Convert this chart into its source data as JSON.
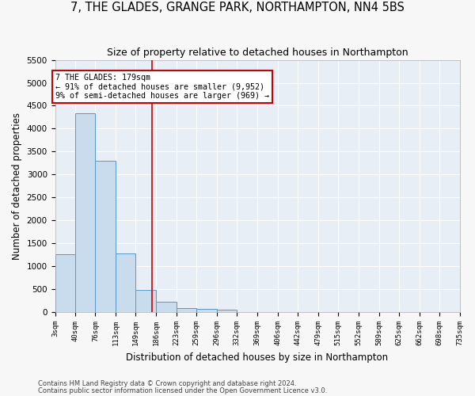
{
  "title1": "7, THE GLADES, GRANGE PARK, NORTHAMPTON, NN4 5BS",
  "title2": "Size of property relative to detached houses in Northampton",
  "xlabel": "Distribution of detached houses by size in Northampton",
  "ylabel": "Number of detached properties",
  "footer1": "Contains HM Land Registry data © Crown copyright and database right 2024.",
  "footer2": "Contains public sector information licensed under the Open Government Licence v3.0.",
  "bin_edges": [
    3,
    40,
    76,
    113,
    149,
    186,
    223,
    259,
    296,
    332,
    369,
    406,
    442,
    479,
    515,
    552,
    589,
    625,
    662,
    698,
    735
  ],
  "bar_heights": [
    1270,
    4330,
    3300,
    1280,
    490,
    220,
    90,
    70,
    60,
    0,
    0,
    0,
    0,
    0,
    0,
    0,
    0,
    0,
    0,
    0
  ],
  "bar_color": "#c8dcee",
  "bar_edge_color": "#5599cc",
  "ref_line_x": 179,
  "ref_line_color": "#cc0000",
  "ylim": [
    0,
    5500
  ],
  "yticks": [
    0,
    500,
    1000,
    1500,
    2000,
    2500,
    3000,
    3500,
    4000,
    4500,
    5000,
    5500
  ],
  "annotation_title": "7 THE GLADES: 179sqm",
  "annotation_line1": "← 91% of detached houses are smaller (9,952)",
  "annotation_line2": "9% of semi-detached houses are larger (969) →",
  "fig_bg_color": "#f7f7f7",
  "plot_bg_color": "#e8eef5"
}
